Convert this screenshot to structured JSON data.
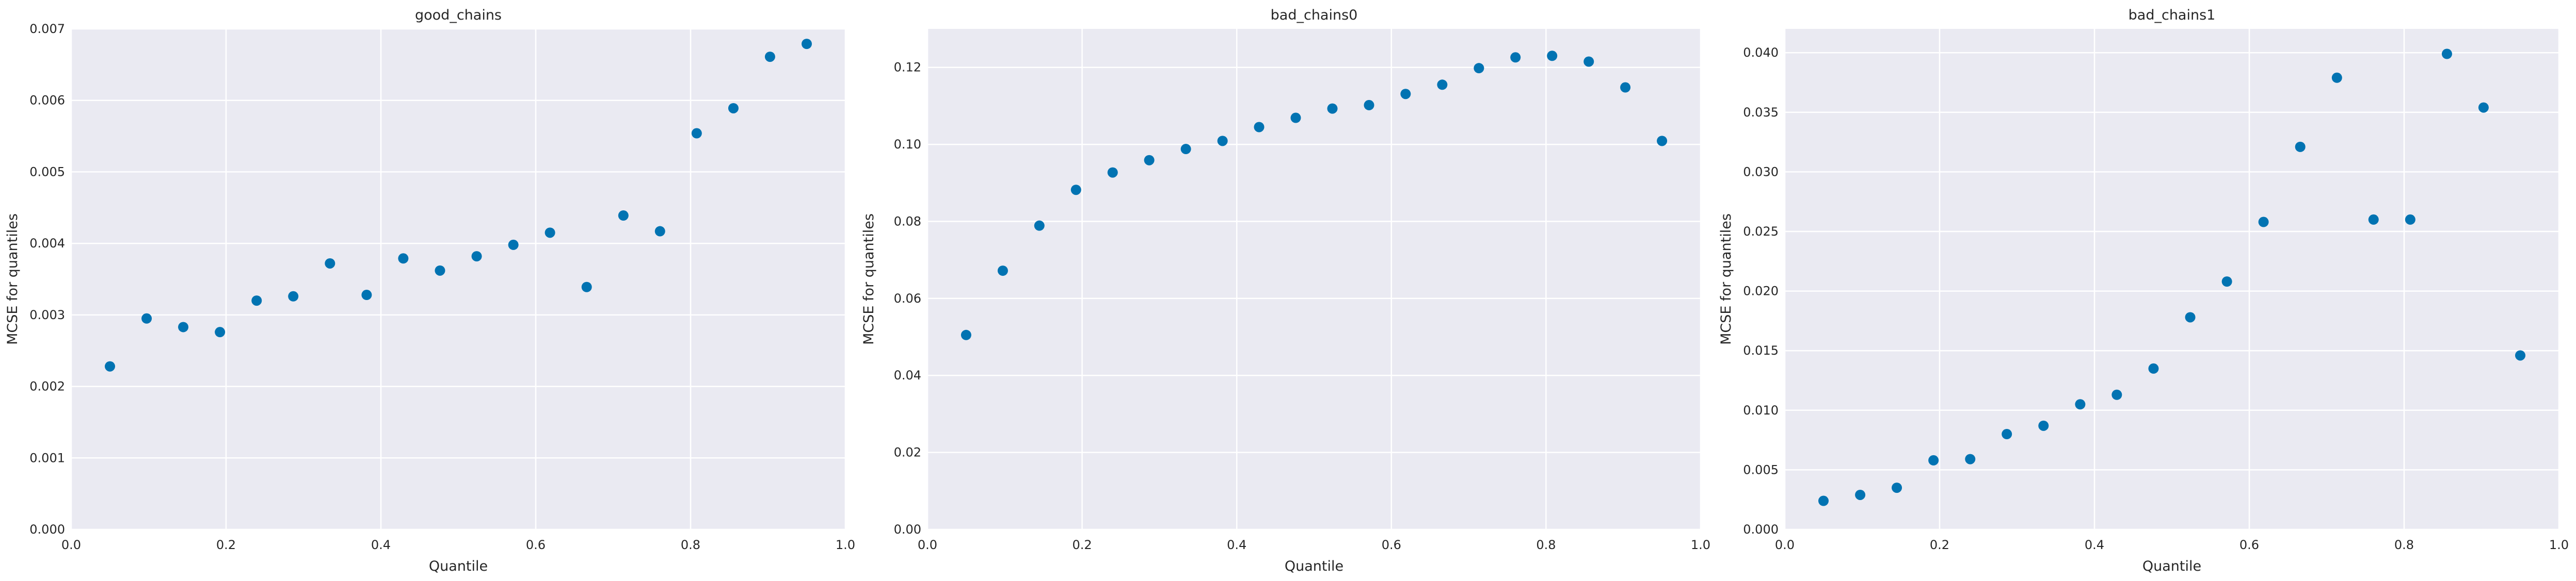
{
  "chart_data": [
    {
      "type": "scatter",
      "title": "good_chains",
      "xlabel": "Quantile",
      "ylabel": "MCSE for quantiles",
      "xlim": [
        0,
        1
      ],
      "ylim": [
        0,
        0.007
      ],
      "xticks": [
        "0.0",
        "0.2",
        "0.4",
        "0.6",
        "0.8",
        "1.0"
      ],
      "yticks": [
        "0.000",
        "0.001",
        "0.002",
        "0.003",
        "0.004",
        "0.005",
        "0.006",
        "0.007"
      ],
      "grid": true,
      "color": "#0173b2",
      "x": [
        0.05,
        0.0974,
        0.1447,
        0.1921,
        0.2395,
        0.2868,
        0.3342,
        0.3816,
        0.4289,
        0.4763,
        0.5237,
        0.5711,
        0.6184,
        0.6658,
        0.7132,
        0.7605,
        0.8079,
        0.8553,
        0.9026,
        0.95
      ],
      "y": [
        0.00228,
        0.00295,
        0.00283,
        0.00276,
        0.0032,
        0.00326,
        0.00372,
        0.00328,
        0.00379,
        0.00362,
        0.00382,
        0.00398,
        0.00415,
        0.00339,
        0.00439,
        0.00417,
        0.00554,
        0.00589,
        0.00661,
        0.00679
      ]
    },
    {
      "type": "scatter",
      "title": "bad_chains0",
      "xlabel": "Quantile",
      "ylabel": "MCSE for quantiles",
      "xlim": [
        0,
        1
      ],
      "ylim": [
        0,
        0.13
      ],
      "xticks": [
        "0.0",
        "0.2",
        "0.4",
        "0.6",
        "0.8",
        "1.0"
      ],
      "yticks": [
        "0.00",
        "0.02",
        "0.04",
        "0.06",
        "0.08",
        "0.10",
        "0.12"
      ],
      "grid": true,
      "color": "#0173b2",
      "x": [
        0.05,
        0.0974,
        0.1447,
        0.1921,
        0.2395,
        0.2868,
        0.3342,
        0.3816,
        0.4289,
        0.4763,
        0.5237,
        0.5711,
        0.6184,
        0.6658,
        0.7132,
        0.7605,
        0.8079,
        0.8553,
        0.9026,
        0.95
      ],
      "y": [
        0.0505,
        0.0672,
        0.0789,
        0.0882,
        0.0927,
        0.0959,
        0.0988,
        0.1009,
        0.1045,
        0.1069,
        0.1093,
        0.1102,
        0.1131,
        0.1155,
        0.1198,
        0.1226,
        0.123,
        0.1215,
        0.1148,
        0.1009
      ]
    },
    {
      "type": "scatter",
      "title": "bad_chains1",
      "xlabel": "Quantile",
      "ylabel": "MCSE for quantiles",
      "xlim": [
        0,
        1
      ],
      "ylim": [
        0,
        0.042
      ],
      "xticks": [
        "0.0",
        "0.2",
        "0.4",
        "0.6",
        "0.8",
        "1.0"
      ],
      "yticks": [
        "0.000",
        "0.005",
        "0.010",
        "0.015",
        "0.020",
        "0.025",
        "0.030",
        "0.035",
        "0.040"
      ],
      "grid": true,
      "color": "#0173b2",
      "x": [
        0.05,
        0.0974,
        0.1447,
        0.1921,
        0.2395,
        0.2868,
        0.3342,
        0.3816,
        0.4289,
        0.4763,
        0.5237,
        0.5711,
        0.6184,
        0.6658,
        0.7132,
        0.7605,
        0.8079,
        0.8553,
        0.9026,
        0.95
      ],
      "y": [
        0.0024,
        0.0029,
        0.0035,
        0.0058,
        0.0059,
        0.008,
        0.0087,
        0.0105,
        0.0113,
        0.0135,
        0.0178,
        0.0208,
        0.0258,
        0.0321,
        0.0379,
        0.026,
        0.026,
        0.0399,
        0.0354,
        0.0146
      ]
    }
  ]
}
